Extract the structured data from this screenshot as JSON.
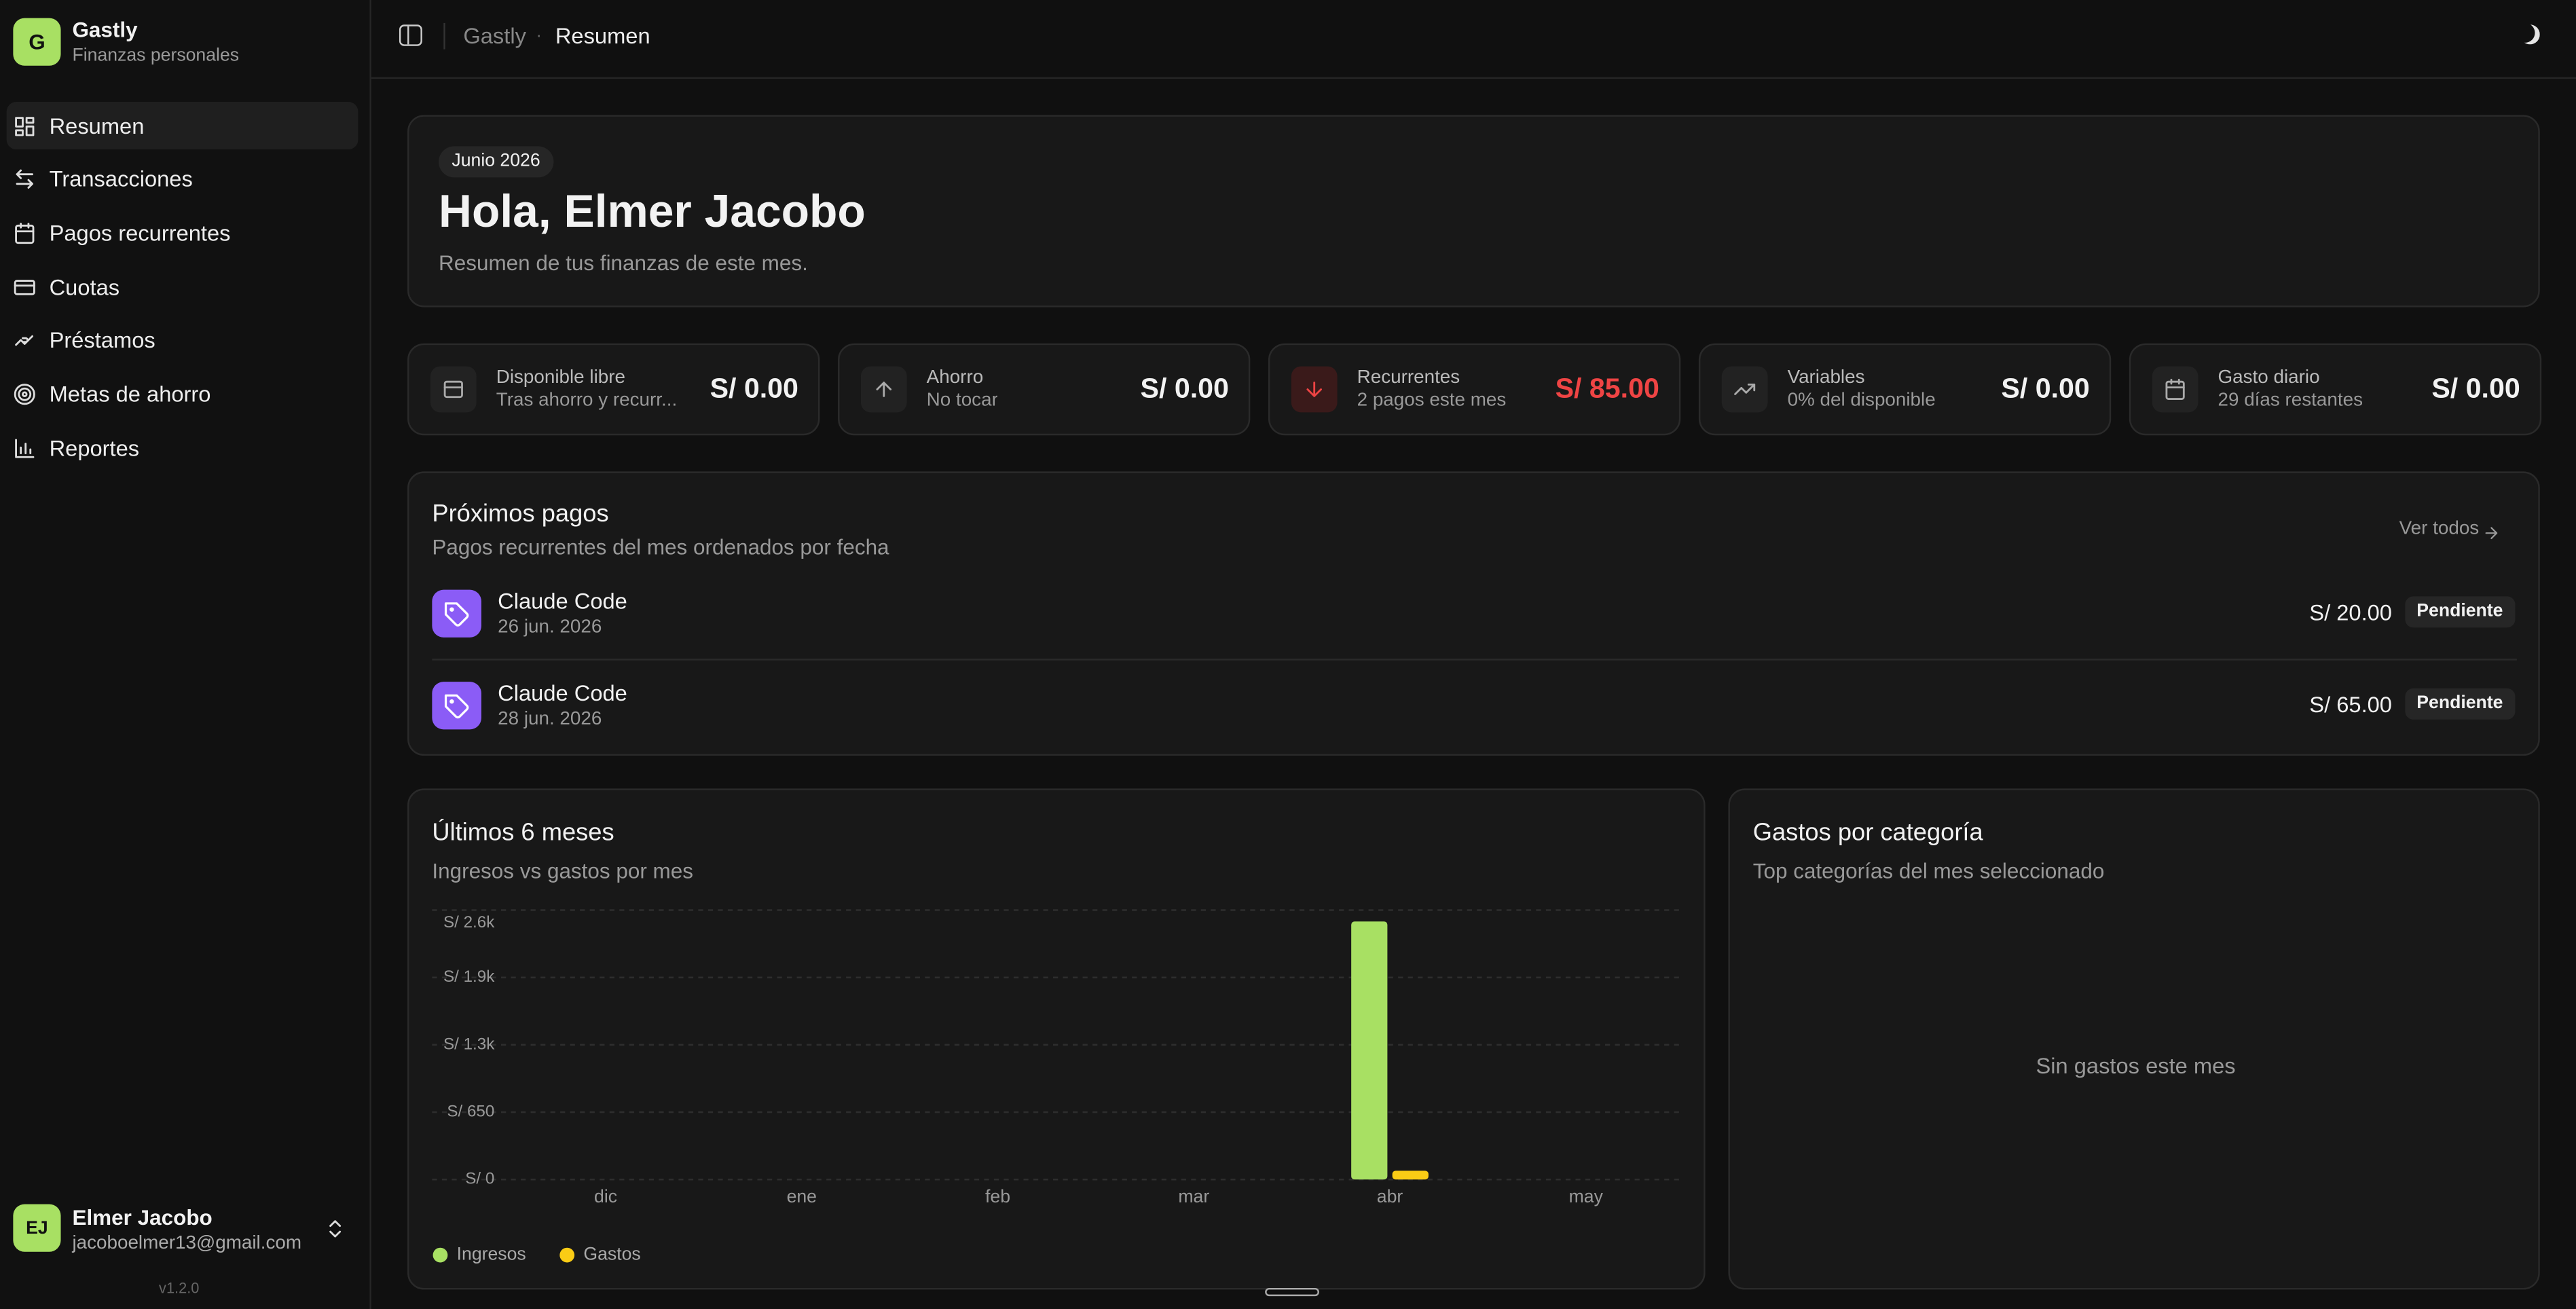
{
  "sidebar": {
    "brand": {
      "initial": "G",
      "name": "Gastly",
      "subtitle": "Finanzas personales"
    },
    "nav": [
      "Resumen",
      "Transacciones",
      "Pagos recurrentes",
      "Cuotas",
      "Préstamos",
      "Metas de ahorro",
      "Reportes"
    ],
    "user": {
      "initials": "EJ",
      "name": "Elmer Jacobo",
      "email": "jacoboelmer13@gmail.com"
    },
    "version": "v1.2.0"
  },
  "breadcrumb": [
    "Gastly",
    "·",
    "Resumen"
  ],
  "hero": {
    "badge": "Junio 2026",
    "title": "Hola, Elmer Jacobo",
    "subtitle": "Resumen de tus finanzas de este mes."
  },
  "stats": [
    {
      "label": "Disponible libre",
      "sub": "Tras ahorro y recurr...",
      "value": "S/ 0.00"
    },
    {
      "label": "Ahorro",
      "sub": "No tocar",
      "value": "S/ 0.00"
    },
    {
      "label": "Recurrentes",
      "sub": "2 pagos este mes",
      "value": "S/ 85.00"
    },
    {
      "label": "Variables",
      "sub": "0% del disponible",
      "value": "S/ 0.00"
    },
    {
      "label": "Gasto diario",
      "sub": "29 días restantes",
      "value": "S/ 0.00"
    }
  ],
  "upcoming": {
    "title": "Próximos pagos",
    "subtitle": "Pagos recurrentes del mes ordenados por fecha",
    "link": "Ver todos",
    "items": [
      {
        "name": "Claude Code",
        "date": "26 jun. 2026",
        "amount": "S/ 20.00",
        "status": "Pendiente"
      },
      {
        "name": "Claude Code",
        "date": "28 jun. 2026",
        "amount": "S/ 65.00",
        "status": "Pendiente"
      }
    ]
  },
  "chart_data": {
    "type": "bar",
    "title": "Últimos 6 meses",
    "subtitle": "Ingresos vs gastos por mes",
    "categories": [
      "dic",
      "ene",
      "feb",
      "mar",
      "abr",
      "may"
    ],
    "series": [
      {
        "name": "Ingresos",
        "color": "#a8e063",
        "values": [
          0,
          0,
          0,
          0,
          2490,
          0
        ]
      },
      {
        "name": "Gastos",
        "color": "#facc15",
        "values": [
          0,
          0,
          0,
          0,
          85,
          0
        ]
      }
    ],
    "ylim": [
      0,
      2600
    ],
    "yticks": [
      {
        "value": 0,
        "label": "S/ 0"
      },
      {
        "value": 650,
        "label": "S/ 650"
      },
      {
        "value": 1300,
        "label": "S/ 1.3k"
      },
      {
        "value": 1950,
        "label": "S/ 1.9k"
      },
      {
        "value": 2600,
        "label": "S/ 2.6k"
      }
    ],
    "grid": true,
    "legend": "bottom-left"
  },
  "categories_panel": {
    "title": "Gastos por categoría",
    "subtitle": "Top categorías del mes seleccionado",
    "empty": "Sin gastos este mes"
  }
}
